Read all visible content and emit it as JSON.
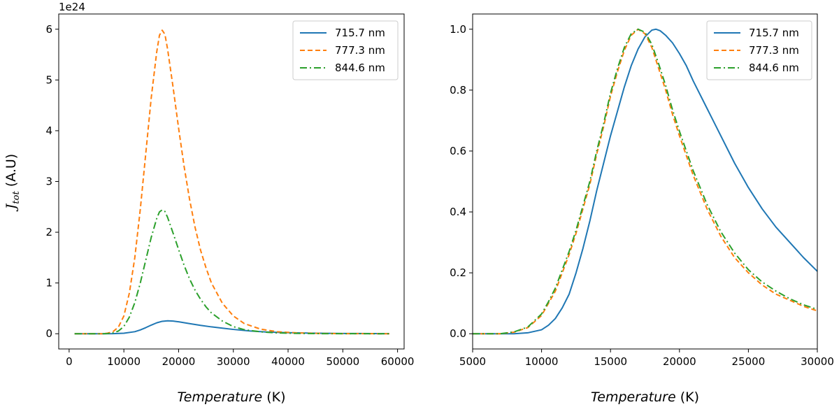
{
  "colors": {
    "blue": "#1f77b4",
    "orange": "#ff7f0e",
    "green": "#2ca02c"
  },
  "chart_data": [
    {
      "type": "line",
      "panel": "left",
      "xlabel_italic": "Temperature",
      "xlabel_unit": "(K)",
      "ylabel_main": "J",
      "ylabel_sub": "tot",
      "ylabel_unit": "(A.U)",
      "y_offset_text": "1e24",
      "xlim": [
        -1900,
        61200
      ],
      "ylim": [
        -0.3,
        6.3
      ],
      "xticks": [
        0,
        10000,
        20000,
        30000,
        40000,
        50000,
        60000
      ],
      "xtick_labels": [
        "0",
        "10000",
        "20000",
        "30000",
        "40000",
        "50000",
        "60000"
      ],
      "yticks": [
        0,
        1,
        2,
        3,
        4,
        5,
        6
      ],
      "ytick_labels": [
        "0",
        "1",
        "2",
        "3",
        "4",
        "5",
        "6"
      ],
      "grid": false,
      "legend_position": "top-right",
      "series": [
        {
          "name": "715.7 nm",
          "color": "#1f77b4",
          "dash": "solid",
          "x": [
            1000,
            6000,
            8000,
            10000,
            12000,
            13000,
            14000,
            15000,
            16000,
            17000,
            18000,
            19000,
            20000,
            22000,
            24000,
            26000,
            28000,
            30000,
            33000,
            36000,
            40000,
            45000,
            50000,
            58500
          ],
          "y": [
            0,
            0,
            0.002,
            0.01,
            0.04,
            0.075,
            0.12,
            0.17,
            0.215,
            0.245,
            0.255,
            0.25,
            0.235,
            0.2,
            0.165,
            0.135,
            0.11,
            0.085,
            0.055,
            0.035,
            0.02,
            0.01,
            0.005,
            0.002
          ]
        },
        {
          "name": "777.3 nm",
          "color": "#ff7f0e",
          "dash": "dashed",
          "x": [
            1000,
            6000,
            7000,
            8000,
            9000,
            10000,
            11000,
            12000,
            13000,
            14000,
            15000,
            16000,
            16500,
            17000,
            17500,
            18000,
            19000,
            20000,
            21000,
            22000,
            23000,
            24000,
            25000,
            26000,
            28000,
            30000,
            32000,
            35000,
            38000,
            42000,
            46000,
            50000,
            58500
          ],
          "y": [
            0,
            0,
            0.01,
            0.04,
            0.13,
            0.35,
            0.8,
            1.5,
            2.45,
            3.55,
            4.65,
            5.55,
            5.88,
            5.98,
            5.9,
            5.6,
            4.85,
            4.05,
            3.3,
            2.65,
            2.1,
            1.65,
            1.3,
            1.0,
            0.6,
            0.35,
            0.2,
            0.09,
            0.04,
            0.015,
            0.006,
            0.002,
            0
          ]
        },
        {
          "name": "844.6 nm",
          "color": "#2ca02c",
          "dash": "dashdot",
          "x": [
            1000,
            6000,
            7000,
            8000,
            9000,
            10000,
            11000,
            12000,
            13000,
            14000,
            15000,
            16000,
            16500,
            17000,
            17500,
            18000,
            19000,
            20000,
            21000,
            22000,
            23000,
            24000,
            25000,
            26000,
            28000,
            30000,
            32000,
            35000,
            38000,
            42000,
            46000,
            50000,
            58500
          ],
          "y": [
            0,
            0,
            0.004,
            0.016,
            0.053,
            0.143,
            0.327,
            0.613,
            1.0,
            1.45,
            1.9,
            2.27,
            2.4,
            2.44,
            2.41,
            2.29,
            1.98,
            1.66,
            1.35,
            1.08,
            0.86,
            0.68,
            0.53,
            0.41,
            0.25,
            0.14,
            0.08,
            0.037,
            0.016,
            0.006,
            0.002,
            0.001,
            0
          ]
        }
      ]
    },
    {
      "type": "line",
      "panel": "right",
      "xlabel_italic": "Temperature",
      "xlabel_unit": "(K)",
      "xlim": [
        5000,
        30000
      ],
      "ylim": [
        -0.05,
        1.05
      ],
      "xticks": [
        5000,
        10000,
        15000,
        20000,
        25000,
        30000
      ],
      "xtick_labels": [
        "5000",
        "10000",
        "15000",
        "20000",
        "25000",
        "30000"
      ],
      "yticks": [
        0.0,
        0.2,
        0.4,
        0.6,
        0.8,
        1.0
      ],
      "ytick_labels": [
        "0.0",
        "0.2",
        "0.4",
        "0.6",
        "0.8",
        "1.0"
      ],
      "grid": false,
      "legend_position": "top-right",
      "series": [
        {
          "name": "715.7 nm",
          "color": "#1f77b4",
          "dash": "solid",
          "x": [
            5000,
            8000,
            9000,
            10000,
            10500,
            11000,
            11500,
            12000,
            12500,
            13000,
            13500,
            14000,
            14500,
            15000,
            15500,
            16000,
            16500,
            17000,
            17500,
            18000,
            18300,
            18600,
            19000,
            19500,
            20000,
            20500,
            21000,
            22000,
            23000,
            24000,
            25000,
            26000,
            27000,
            28000,
            29000,
            30000
          ],
          "y": [
            0,
            0,
            0.003,
            0.013,
            0.028,
            0.05,
            0.085,
            0.13,
            0.2,
            0.28,
            0.37,
            0.47,
            0.56,
            0.65,
            0.73,
            0.81,
            0.88,
            0.935,
            0.975,
            0.997,
            1.0,
            0.995,
            0.98,
            0.955,
            0.92,
            0.88,
            0.83,
            0.74,
            0.65,
            0.56,
            0.48,
            0.41,
            0.35,
            0.3,
            0.25,
            0.205
          ]
        },
        {
          "name": "777.3 nm",
          "color": "#ff7f0e",
          "dash": "dashed",
          "x": [
            5000,
            7000,
            8000,
            9000,
            10000,
            10500,
            11000,
            11500,
            12000,
            12500,
            13000,
            13500,
            14000,
            14500,
            15000,
            15500,
            16000,
            16500,
            17000,
            17500,
            18000,
            18500,
            19000,
            19500,
            20000,
            21000,
            22000,
            23000,
            24000,
            25000,
            26000,
            27000,
            28000,
            29000,
            30000
          ],
          "y": [
            0,
            0,
            0.005,
            0.02,
            0.06,
            0.1,
            0.14,
            0.2,
            0.26,
            0.33,
            0.41,
            0.49,
            0.59,
            0.68,
            0.78,
            0.86,
            0.93,
            0.98,
            1.0,
            0.985,
            0.94,
            0.87,
            0.8,
            0.72,
            0.65,
            0.52,
            0.41,
            0.32,
            0.25,
            0.2,
            0.16,
            0.13,
            0.11,
            0.09,
            0.075
          ]
        },
        {
          "name": "844.6 nm",
          "color": "#2ca02c",
          "dash": "dashdot",
          "x": [
            5000,
            7000,
            8000,
            9000,
            10000,
            10500,
            11000,
            11500,
            12000,
            12500,
            13000,
            13500,
            14000,
            14500,
            15000,
            15500,
            16000,
            16500,
            17000,
            17500,
            18000,
            18500,
            19000,
            19500,
            20000,
            21000,
            22000,
            23000,
            24000,
            25000,
            26000,
            27000,
            28000,
            29000,
            30000
          ],
          "y": [
            0,
            0,
            0.006,
            0.022,
            0.065,
            0.105,
            0.15,
            0.21,
            0.27,
            0.34,
            0.42,
            0.5,
            0.6,
            0.69,
            0.79,
            0.87,
            0.94,
            0.985,
            1.0,
            0.99,
            0.95,
            0.885,
            0.815,
            0.735,
            0.665,
            0.535,
            0.425,
            0.335,
            0.265,
            0.21,
            0.17,
            0.14,
            0.115,
            0.095,
            0.08
          ]
        }
      ]
    }
  ]
}
